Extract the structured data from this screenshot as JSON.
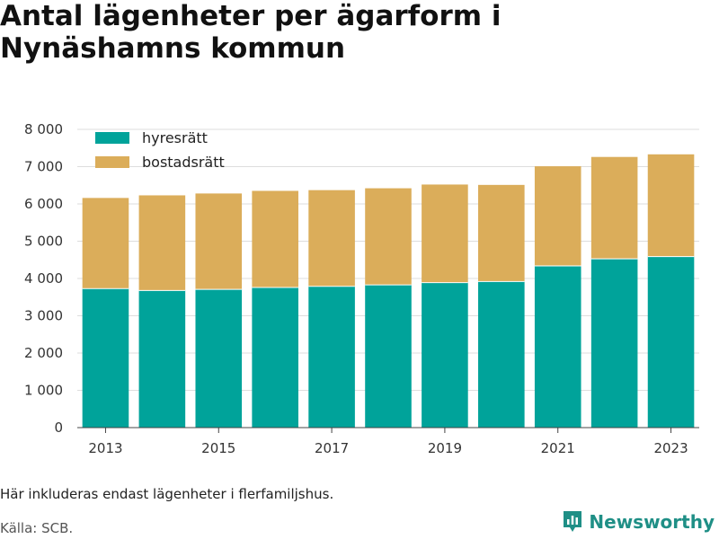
{
  "header": {
    "title": "Antal lägenheter per ägarform i Nynäshamns kommun"
  },
  "footer": {
    "note": "Här inkluderas endast lägenheter i flerfamiljshus.",
    "source": "Källa: SCB.",
    "brand": "Newsworthy",
    "brand_icon": "bar-chart-icon"
  },
  "colors": {
    "hyresratt": "#00a39a",
    "bostadsratt": "#dbad5a",
    "brand": "#1f8f86"
  },
  "chart_data": {
    "type": "bar",
    "stacked": true,
    "title": "Antal lägenheter per ägarform i Nynäshamns kommun",
    "xlabel": "",
    "ylabel": "",
    "categories": [
      2013,
      2014,
      2015,
      2016,
      2017,
      2018,
      2019,
      2020,
      2021,
      2022,
      2023
    ],
    "x_tick_labels": [
      "2013",
      "2015",
      "2017",
      "2019",
      "2021",
      "2023"
    ],
    "x_tick_values": [
      2013,
      2015,
      2017,
      2019,
      2021,
      2023
    ],
    "ylim": [
      0,
      8000
    ],
    "y_ticks": [
      0,
      1000,
      2000,
      3000,
      4000,
      5000,
      6000,
      7000,
      8000
    ],
    "y_tick_labels": [
      "0",
      "1 000",
      "2 000",
      "3 000",
      "4 000",
      "5 000",
      "6 000",
      "7 000",
      "8 000"
    ],
    "grid": true,
    "legend_position": "top-left",
    "series": [
      {
        "name": "hyresrätt",
        "color": "#00a39a",
        "values": [
          3740,
          3690,
          3720,
          3770,
          3800,
          3840,
          3900,
          3930,
          4350,
          4540,
          4600
        ]
      },
      {
        "name": "bostadsrätt",
        "color": "#dbad5a",
        "values": [
          2420,
          2540,
          2560,
          2580,
          2570,
          2580,
          2620,
          2580,
          2660,
          2720,
          2730
        ]
      }
    ]
  }
}
